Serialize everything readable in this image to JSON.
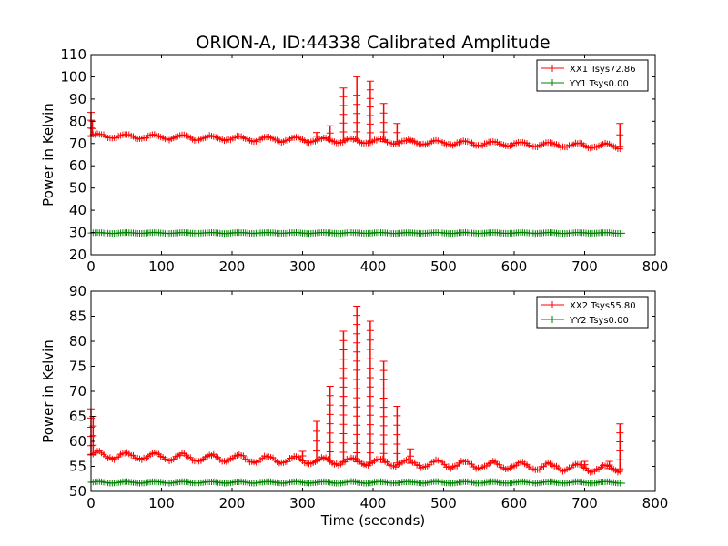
{
  "chart_data": {
    "type": "line",
    "title": "ORION-A, ID:44338 Calibrated Amplitude",
    "xlabel": "Time (seconds)",
    "panels": [
      {
        "ylabel": "Power in Kelvin",
        "xlim": [
          0,
          800
        ],
        "ylim": [
          20,
          110
        ],
        "xticks": [
          0,
          100,
          200,
          300,
          400,
          500,
          600,
          700,
          800
        ],
        "yticks": [
          20,
          30,
          40,
          50,
          60,
          70,
          80,
          90,
          100,
          110
        ],
        "legend_position": "top-right",
        "series": [
          {
            "name": "XX1 Tsys72.86",
            "color": "#ff0000",
            "baseline": {
              "start": 73.5,
              "end": 68.8,
              "wobble_amplitude": 1.0,
              "wobble_period": 40
            },
            "x_range": [
              0,
              752
            ],
            "spikes": [
              {
                "x": 0,
                "y": 84
              },
              {
                "x": 2,
                "y": 80
              },
              {
                "x": 320,
                "y": 75
              },
              {
                "x": 339,
                "y": 78
              },
              {
                "x": 358,
                "y": 95
              },
              {
                "x": 377,
                "y": 100
              },
              {
                "x": 396,
                "y": 98
              },
              {
                "x": 415,
                "y": 88
              },
              {
                "x": 434,
                "y": 79
              },
              {
                "x": 453,
                "y": 72
              },
              {
                "x": 750,
                "y": 79
              }
            ]
          },
          {
            "name": "YY1 Tsys0.00",
            "color": "#008000",
            "baseline": {
              "start": 29.8,
              "end": 29.8,
              "wobble_amplitude": 0.2,
              "wobble_period": 40
            },
            "x_range": [
              0,
              755
            ],
            "spikes": []
          }
        ]
      },
      {
        "ylabel": "Power in Kelvin",
        "xlim": [
          0,
          800
        ],
        "ylim": [
          50,
          90
        ],
        "xticks": [
          0,
          100,
          200,
          300,
          400,
          500,
          600,
          700,
          800
        ],
        "yticks": [
          50,
          55,
          60,
          65,
          70,
          75,
          80,
          85,
          90
        ],
        "legend_position": "top-right",
        "series": [
          {
            "name": "XX2 Tsys55.80",
            "color": "#ff0000",
            "baseline": {
              "start": 57.3,
              "end": 54.5,
              "wobble_amplitude": 0.7,
              "wobble_period": 40
            },
            "x_range": [
              0,
              752
            ],
            "spikes": [
              {
                "x": 0,
                "y": 66.5
              },
              {
                "x": 3,
                "y": 65
              },
              {
                "x": 300,
                "y": 58
              },
              {
                "x": 320,
                "y": 64
              },
              {
                "x": 339,
                "y": 71
              },
              {
                "x": 358,
                "y": 82
              },
              {
                "x": 377,
                "y": 87
              },
              {
                "x": 396,
                "y": 84
              },
              {
                "x": 415,
                "y": 76
              },
              {
                "x": 434,
                "y": 67
              },
              {
                "x": 453,
                "y": 58.5
              },
              {
                "x": 700,
                "y": 56
              },
              {
                "x": 735,
                "y": 56
              },
              {
                "x": 750,
                "y": 63.5
              }
            ]
          },
          {
            "name": "YY2 Tsys0.00",
            "color": "#008000",
            "baseline": {
              "start": 51.8,
              "end": 51.8,
              "wobble_amplitude": 0.15,
              "wobble_period": 40
            },
            "x_range": [
              0,
              755
            ],
            "spikes": []
          }
        ]
      }
    ]
  }
}
